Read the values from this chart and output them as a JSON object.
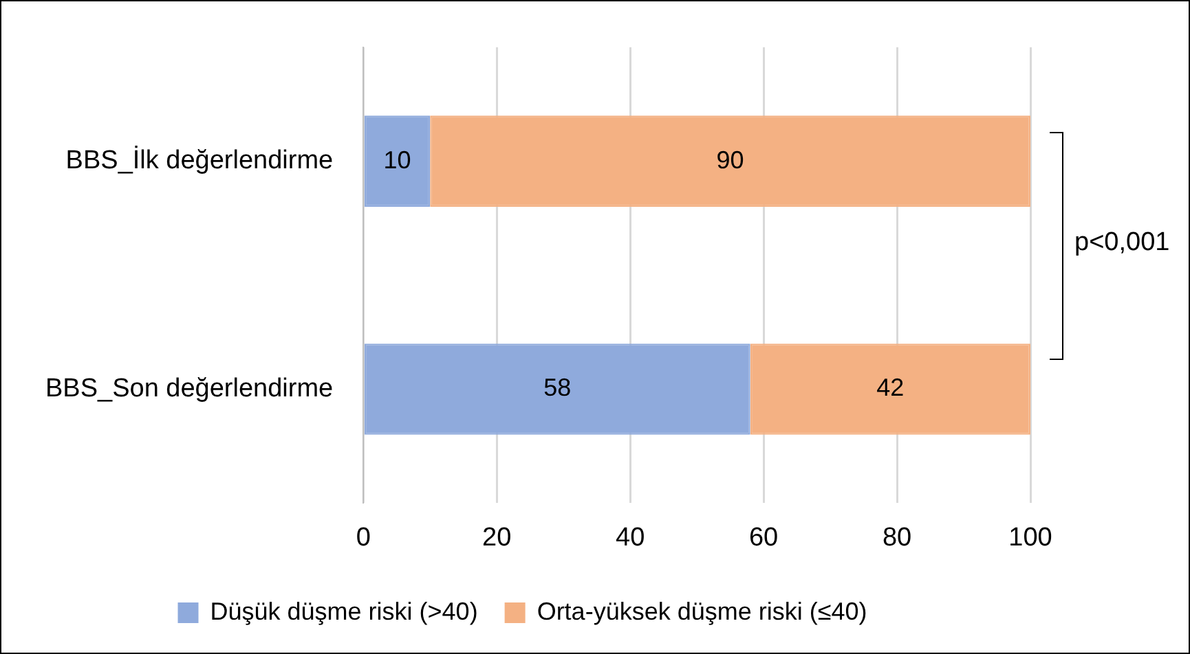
{
  "chart_data": {
    "type": "bar",
    "orientation": "horizontal",
    "stacked": true,
    "categories": [
      "BBS_İlk değerlendirme",
      "BBS_Son değerlendirme"
    ],
    "series": [
      {
        "name": "Düşük düşme riski (>40)",
        "color": "#8faadc",
        "values": [
          10,
          58
        ]
      },
      {
        "name": "Orta-yüksek düşme riski (≤40)",
        "color": "#f4b183",
        "values": [
          90,
          42
        ]
      }
    ],
    "xlim": [
      0,
      100
    ],
    "xticks": [
      0,
      20,
      40,
      60,
      80,
      100
    ],
    "grid": "x",
    "legend": "bottom",
    "data_labels": true,
    "annotations": [
      "p<0,001"
    ]
  }
}
